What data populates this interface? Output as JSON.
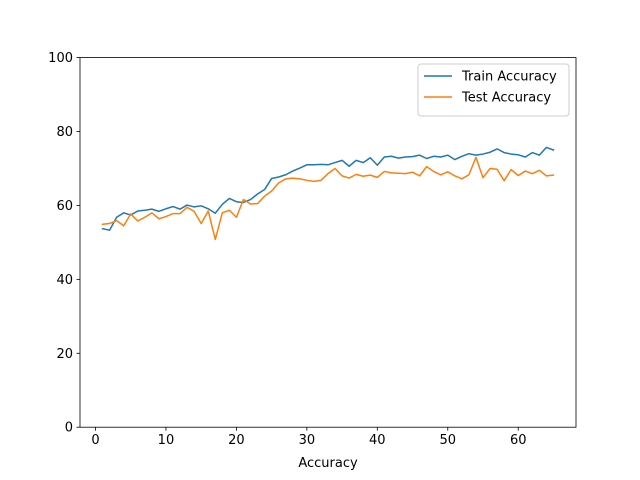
{
  "chart_data": {
    "type": "line",
    "title": "",
    "xlabel": "Accuracy",
    "ylabel": "",
    "xlim": [
      -2.2,
      68.2
    ],
    "ylim": [
      0,
      100
    ],
    "xticks": [
      0,
      10,
      20,
      30,
      40,
      50,
      60
    ],
    "yticks": [
      0,
      20,
      40,
      60,
      80,
      100
    ],
    "grid": false,
    "legend_position": "top-right",
    "x": [
      1,
      2,
      3,
      4,
      5,
      6,
      7,
      8,
      9,
      10,
      11,
      12,
      13,
      14,
      15,
      16,
      17,
      18,
      19,
      20,
      21,
      22,
      23,
      24,
      25,
      26,
      27,
      28,
      29,
      30,
      31,
      32,
      33,
      34,
      35,
      36,
      37,
      38,
      39,
      40,
      41,
      42,
      43,
      44,
      45,
      46,
      47,
      48,
      49,
      50,
      51,
      52,
      53,
      54,
      55,
      56,
      57,
      58,
      59,
      60,
      61,
      62,
      63,
      64,
      65
    ],
    "series": [
      {
        "name": "Train Accuracy",
        "color": "#1f77b4",
        "values": [
          53.7,
          53.3,
          56.8,
          58.0,
          57.4,
          58.5,
          58.7,
          59.0,
          58.4,
          59.1,
          59.7,
          59.0,
          60.1,
          59.6,
          59.9,
          59.1,
          57.9,
          60.3,
          61.9,
          61.0,
          60.8,
          61.6,
          63.1,
          64.3,
          67.3,
          67.7,
          68.3,
          69.3,
          70.1,
          71.0,
          71.0,
          71.1,
          71.0,
          71.6,
          72.2,
          70.6,
          72.2,
          71.6,
          72.9,
          70.9,
          73.1,
          73.3,
          72.8,
          73.1,
          73.2,
          73.6,
          72.7,
          73.3,
          73.1,
          73.6,
          72.4,
          73.3,
          74.0,
          73.6,
          73.9,
          74.4,
          75.3,
          74.3,
          73.9,
          73.7,
          73.1,
          74.3,
          73.6,
          75.7,
          75.0
        ]
      },
      {
        "name": "Test Accuracy",
        "color": "#ff7f0e",
        "values": [
          54.9,
          55.1,
          55.9,
          54.5,
          57.7,
          55.8,
          56.8,
          58.0,
          56.4,
          57.0,
          57.8,
          57.8,
          59.5,
          58.4,
          55.1,
          58.5,
          50.8,
          58.0,
          58.7,
          56.8,
          61.6,
          60.4,
          60.5,
          62.5,
          63.9,
          66.1,
          67.2,
          67.4,
          67.2,
          66.8,
          66.5,
          66.8,
          68.6,
          70.0,
          68.0,
          67.4,
          68.4,
          67.9,
          68.2,
          67.6,
          69.2,
          68.8,
          68.7,
          68.6,
          69.0,
          68.0,
          70.5,
          69.2,
          68.3,
          69.1,
          68.0,
          67.2,
          68.3,
          73.0,
          67.5,
          70.0,
          69.8,
          66.7,
          69.7,
          68.1,
          69.3,
          68.6,
          69.5,
          68.0,
          68.2
        ]
      }
    ]
  }
}
